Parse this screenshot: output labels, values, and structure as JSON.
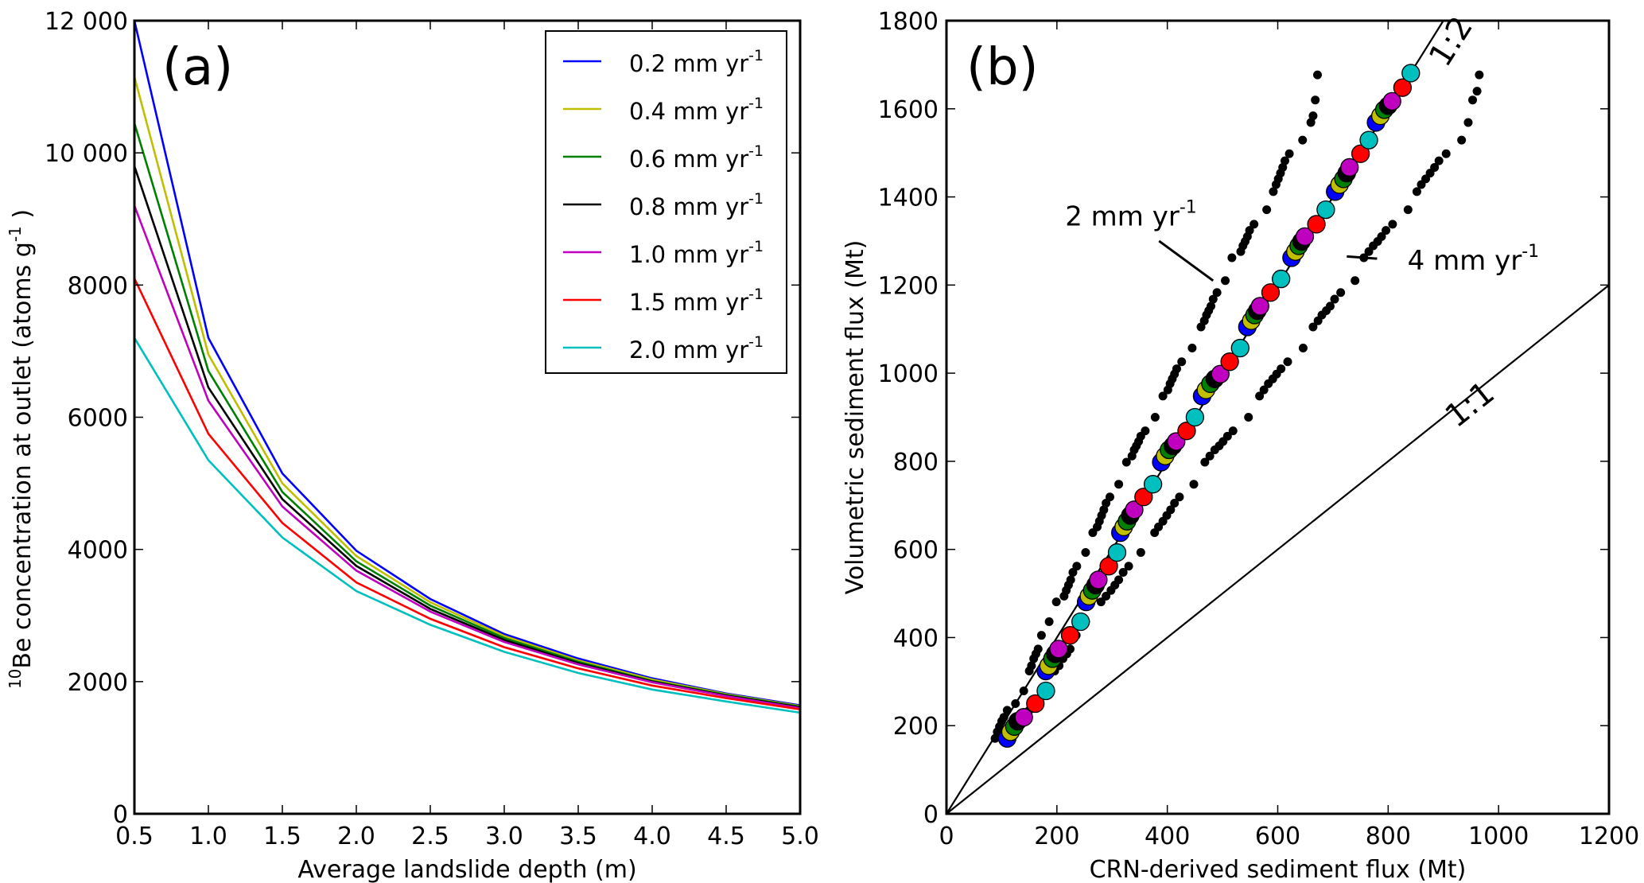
{
  "chart_data": [
    {
      "type": "line",
      "panel_label": "(a)",
      "title": "",
      "xlabel": "Average landslide depth (m)",
      "ylabel_sup": "10",
      "ylabel_main": "Be concentration at outlet (atoms g",
      "ylabel_sup2": "-1",
      "ylabel_end": " )",
      "xlim": [
        0.5,
        5.0
      ],
      "ylim": [
        0,
        12000
      ],
      "xticks": [
        0.5,
        1.0,
        1.5,
        2.0,
        2.5,
        3.0,
        3.5,
        4.0,
        4.5,
        5.0
      ],
      "xtick_labels": [
        "0.5",
        "1.0",
        "1.5",
        "2.0",
        "2.5",
        "3.0",
        "3.5",
        "4.0",
        "4.5",
        "5.0"
      ],
      "yticks": [
        0,
        2000,
        4000,
        6000,
        8000,
        10000,
        12000
      ],
      "ytick_labels": [
        "0",
        "2000",
        "4000",
        "6000",
        "8000",
        "10 000",
        "12 000"
      ],
      "legend_position": "top-right",
      "x": [
        0.5,
        1.0,
        1.5,
        2.0,
        2.5,
        3.0,
        3.5,
        4.0,
        4.5,
        5.0
      ],
      "series": [
        {
          "name": "0.2 mm yr",
          "sup": "-1",
          "color": "#0000ff",
          "values": [
            12000,
            7200,
            5150,
            3980,
            3250,
            2720,
            2350,
            2050,
            1820,
            1640
          ]
        },
        {
          "name": "0.4 mm yr",
          "sup": "-1",
          "color": "#bfbf00",
          "values": [
            11150,
            6950,
            5000,
            3900,
            3200,
            2690,
            2320,
            2030,
            1810,
            1630
          ]
        },
        {
          "name": "0.6 mm yr",
          "sup": "-1",
          "color": "#008000",
          "values": [
            10450,
            6700,
            4870,
            3820,
            3150,
            2660,
            2300,
            2010,
            1800,
            1620
          ]
        },
        {
          "name": "0.8 mm yr",
          "sup": "-1",
          "color": "#000000",
          "values": [
            9800,
            6450,
            4760,
            3750,
            3100,
            2630,
            2280,
            2000,
            1790,
            1610
          ]
        },
        {
          "name": "1.0 mm yr",
          "sup": "-1",
          "color": "#bf00bf",
          "values": [
            9200,
            6250,
            4650,
            3680,
            3060,
            2600,
            2260,
            1990,
            1780,
            1600
          ]
        },
        {
          "name": "1.5 mm yr",
          "sup": "-1",
          "color": "#ff0000",
          "values": [
            8100,
            5750,
            4400,
            3500,
            2950,
            2520,
            2200,
            1940,
            1750,
            1580
          ]
        },
        {
          "name": "2.0 mm yr",
          "sup": "-1",
          "color": "#00bfbf",
          "values": [
            7200,
            5350,
            4180,
            3370,
            2860,
            2450,
            2130,
            1880,
            1700,
            1530
          ]
        }
      ]
    },
    {
      "type": "scatter",
      "panel_label": "(b)",
      "title": "",
      "xlabel": "CRN-derived sediment flux (Mt)",
      "ylabel": "Volumetric sediment flux (Mt)",
      "xlim": [
        0,
        1200
      ],
      "ylim": [
        0,
        1800
      ],
      "xticks": [
        0,
        200,
        400,
        600,
        800,
        1000,
        1200
      ],
      "xtick_labels": [
        "0",
        "200",
        "400",
        "600",
        "800",
        "1000",
        "1200"
      ],
      "yticks": [
        0,
        200,
        400,
        600,
        800,
        1000,
        1200,
        1400,
        1600,
        1800
      ],
      "ytick_labels": [
        "0",
        "200",
        "400",
        "600",
        "800",
        "1000",
        "1200",
        "1400",
        "1600",
        "1800"
      ],
      "reference_lines": [
        {
          "label": "1:2",
          "slope": 2
        },
        {
          "label": "1:1",
          "slope": 1
        }
      ],
      "annotations": [
        {
          "text": "2 mm yr",
          "sup": "-1",
          "points_to": [
            483,
            1210
          ]
        },
        {
          "text": "4 mm yr",
          "sup": "-1",
          "points_to": [
            725,
            1265
          ]
        }
      ],
      "series": [
        {
          "name": "0.2 mm yr-1",
          "color": "#0000ff",
          "x": [
            110,
            180,
            253,
            315,
            389,
            463,
            545,
            625,
            704,
            778
          ],
          "y": [
            171,
            324,
            481,
            638,
            798,
            948,
            1105,
            1262,
            1412,
            1569
          ]
        },
        {
          "name": "0.4 mm yr-1",
          "color": "#bfbf00",
          "x": [
            116,
            185,
            258,
            321,
            396,
            470,
            552,
            632,
            712,
            786
          ],
          "y": [
            186,
            336,
            494,
            651,
            812,
            962,
            1119,
            1276,
            1428,
            1584
          ]
        },
        {
          "name": "0.6 mm yr-1",
          "color": "#008000",
          "x": [
            123,
            192,
            264,
            327,
            403,
            478,
            558,
            638,
            719,
            793
          ],
          "y": [
            198,
            352,
            507,
            664,
            826,
            976,
            1132,
            1289,
            1441,
            1598
          ]
        },
        {
          "name": "0.8 mm yr-1",
          "color": "#000000",
          "x": [
            129,
            197,
            270,
            333,
            410,
            486,
            563,
            643,
            725,
            800
          ],
          "y": [
            210,
            363,
            519,
            677,
            835,
            987,
            1142,
            1299,
            1454,
            1607
          ]
        },
        {
          "name": "1.0 mm yr-1",
          "color": "#bf00bf",
          "x": [
            140,
            203,
            275,
            340,
            416,
            496,
            568,
            649,
            730,
            807
          ],
          "y": [
            219,
            374,
            531,
            690,
            845,
            998,
            1152,
            1310,
            1467,
            1617
          ]
        },
        {
          "name": "1.5 mm yr-1",
          "color": "#ff0000",
          "x": [
            161,
            224,
            294,
            357,
            435,
            513,
            587,
            670,
            750,
            826
          ],
          "y": [
            250,
            405,
            562,
            719,
            869,
            1026,
            1183,
            1338,
            1498,
            1648
          ]
        },
        {
          "name": "2.0 mm yr-1",
          "color": "#00bfbf",
          "x": [
            180,
            243,
            309,
            374,
            450,
            532,
            606,
            687,
            765,
            841
          ],
          "y": [
            279,
            436,
            593,
            748,
            900,
            1057,
            1214,
            1371,
            1529,
            1681
          ]
        },
        {
          "name": "2 mm yr-1 (small)",
          "color": "#000000",
          "marker": "small",
          "x": [
            88,
            92,
            96,
            100,
            104,
            110,
            125,
            140,
            150,
            154,
            158,
            162,
            166,
            172,
            186,
            199,
            213,
            217,
            221,
            225,
            229,
            236,
            252,
            265,
            273,
            277,
            281,
            285,
            289,
            296,
            312,
            326,
            336,
            340,
            344,
            348,
            352,
            360,
            378,
            392,
            401,
            405,
            409,
            413,
            417,
            426,
            445,
            461,
            467,
            471,
            475,
            479,
            483,
            490,
            505,
            517,
            533,
            537,
            541,
            545,
            549,
            557,
            580,
            592,
            597,
            601,
            605,
            609,
            613,
            621,
            645,
            660,
            664,
            668,
            672
          ],
          "y": [
            171,
            186,
            198,
            210,
            219,
            235,
            250,
            279,
            324,
            336,
            352,
            363,
            374,
            405,
            436,
            481,
            494,
            507,
            519,
            531,
            548,
            562,
            593,
            638,
            651,
            664,
            677,
            690,
            705,
            719,
            748,
            798,
            812,
            826,
            835,
            845,
            857,
            869,
            900,
            948,
            962,
            976,
            987,
            998,
            1010,
            1026,
            1057,
            1105,
            1119,
            1132,
            1142,
            1152,
            1168,
            1183,
            1210,
            1262,
            1276,
            1289,
            1299,
            1310,
            1324,
            1338,
            1371,
            1412,
            1428,
            1441,
            1454,
            1467,
            1482,
            1498,
            1529,
            1569,
            1584,
            1620,
            1677
          ]
        },
        {
          "name": "4 mm yr-1 (small)",
          "color": "#000000",
          "marker": "small",
          "x": [
            118,
            124,
            130,
            136,
            142,
            150,
            164,
            182,
            196,
            204,
            211,
            218,
            224,
            235,
            252,
            280,
            289,
            298,
            305,
            312,
            320,
            330,
            352,
            377,
            384,
            392,
            399,
            406,
            413,
            422,
            448,
            468,
            477,
            486,
            494,
            501,
            509,
            519,
            547,
            567,
            575,
            583,
            591,
            598,
            606,
            618,
            646,
            664,
            673,
            680,
            688,
            695,
            703,
            714,
            740,
            756,
            765,
            773,
            781,
            788,
            796,
            808,
            836,
            852,
            860,
            868,
            876,
            884,
            892,
            905,
            933,
            945,
            953,
            961,
            965
          ],
          "y": [
            171,
            186,
            198,
            210,
            219,
            235,
            250,
            279,
            324,
            336,
            352,
            363,
            374,
            405,
            436,
            481,
            494,
            507,
            519,
            531,
            548,
            562,
            593,
            638,
            651,
            664,
            677,
            690,
            705,
            719,
            748,
            798,
            812,
            826,
            835,
            845,
            857,
            869,
            900,
            948,
            962,
            976,
            987,
            998,
            1010,
            1026,
            1057,
            1105,
            1119,
            1132,
            1142,
            1152,
            1168,
            1183,
            1210,
            1262,
            1276,
            1289,
            1299,
            1310,
            1324,
            1338,
            1371,
            1412,
            1428,
            1441,
            1454,
            1467,
            1482,
            1498,
            1529,
            1569,
            1620,
            1640,
            1677
          ]
        }
      ]
    }
  ]
}
